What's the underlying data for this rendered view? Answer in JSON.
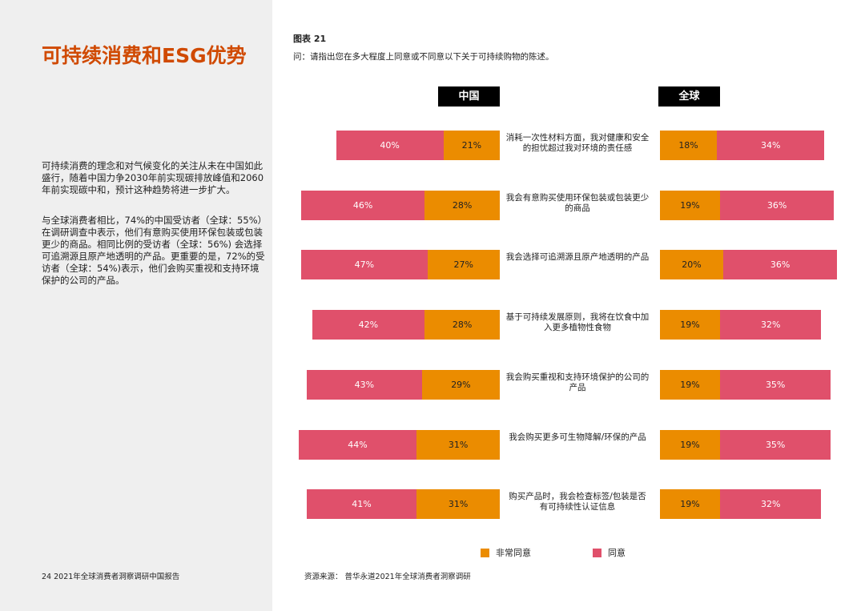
{
  "page": {
    "title": "可持续消费和ESG优势",
    "paragraphs": [
      "可持续消费的理念和对气候变化的关注从未在中国如此盛行，随着中国力争2030年前实现碳排放峰值和2060年前实现碳中和，预计这种趋势将进一步扩大。",
      "与全球消费者相比，74%的中国受访者（全球：55%）在调研调查中表示，他们有意购买使用环保包装或包装更少的商品。相同比例的受访者（全球：56%) 会选择可追溯源且原产地透明的产品。更重要的是，72%的受访者（全球：54%)表示，他们会购买重视和支持环境保护的公司的产品。"
    ],
    "footer": "24  2021年全球消费者洞察调研中国报告",
    "source": "资源来源：  普华永道2021年全球消费者洞察调研"
  },
  "chart_data": {
    "type": "bar",
    "orientation": "horizontal",
    "stacked": true,
    "title": "图表 21",
    "subtitle": "问：请指出您在多大程度上同意或不同意以下关于可持续购物的陈述。",
    "panels": [
      "中国",
      "全球"
    ],
    "categories": [
      "消耗一次性材料方面，我对健康和安全的担忧超过我对环境的责任感",
      "我会有意购买使用环保包装或包装更少的商品",
      "我会选择可追溯源且原产地透明的产品",
      "基于可持续发展原则，我将在饮食中加入更多植物性食物",
      "我会购买重视和支持环境保护的公司的产品",
      "我会购买更多可生物降解/环保的产品",
      "购买产品时，我会检查标签/包装是否有可持续性认证信息"
    ],
    "series": [
      {
        "name": "非常同意",
        "color": "#eb8c00",
        "china": [
          21,
          28,
          27,
          28,
          29,
          31,
          31
        ],
        "global": [
          18,
          19,
          20,
          19,
          19,
          19,
          19
        ]
      },
      {
        "name": "同意",
        "color": "#e0506b",
        "china": [
          40,
          46,
          47,
          42,
          43,
          44,
          41
        ],
        "global": [
          34,
          36,
          36,
          32,
          35,
          35,
          32
        ]
      }
    ],
    "legend": "bottom"
  }
}
